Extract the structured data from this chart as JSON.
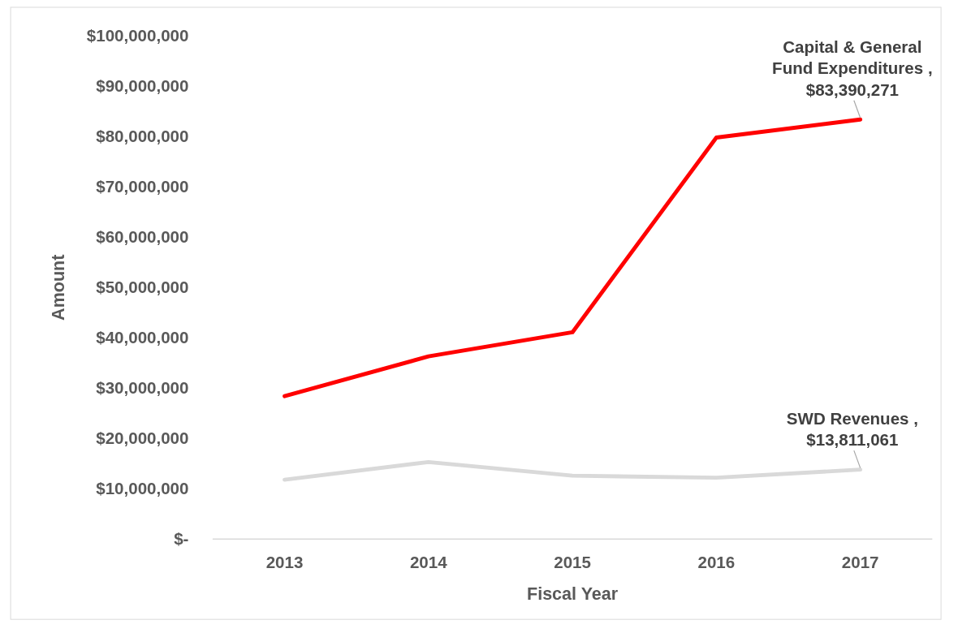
{
  "chart_data": {
    "type": "line",
    "xlabel": "Fiscal Year",
    "ylabel": "Amount",
    "categories": [
      "2013",
      "2014",
      "2015",
      "2016",
      "2017"
    ],
    "series": [
      {
        "color": "#ff0000",
        "values": [
          28400000,
          36300000,
          41100000,
          79800000,
          83390271
        ]
      },
      {
        "color": "#d9d9d9",
        "values": [
          11800000,
          15300000,
          12600000,
          12200000,
          13811061
        ]
      }
    ],
    "ylim": [
      0,
      100000000
    ],
    "yticks": [
      {
        "value": 0,
        "label": "$-"
      },
      {
        "value": 10000000,
        "label": "$10,000,000"
      },
      {
        "value": 20000000,
        "label": "$20,000,000"
      },
      {
        "value": 30000000,
        "label": "$30,000,000"
      },
      {
        "value": 40000000,
        "label": "$40,000,000"
      },
      {
        "value": 50000000,
        "label": "$50,000,000"
      },
      {
        "value": 60000000,
        "label": "$60,000,000"
      },
      {
        "value": 70000000,
        "label": "$70,000,000"
      },
      {
        "value": 80000000,
        "label": "$80,000,000"
      },
      {
        "value": 90000000,
        "label": "$90,000,000"
      },
      {
        "value": 100000000,
        "label": "$100,000,000"
      }
    ],
    "grid": false,
    "marker": "none",
    "line_style": "solid",
    "annotations": [
      {
        "text": "Capital & General Fund Expenditures , $83,390,271",
        "x": "2017",
        "y": 83390271
      },
      {
        "text": "SWD Revenues , $13,811,061",
        "x": "2017",
        "y": 13811061
      }
    ]
  }
}
